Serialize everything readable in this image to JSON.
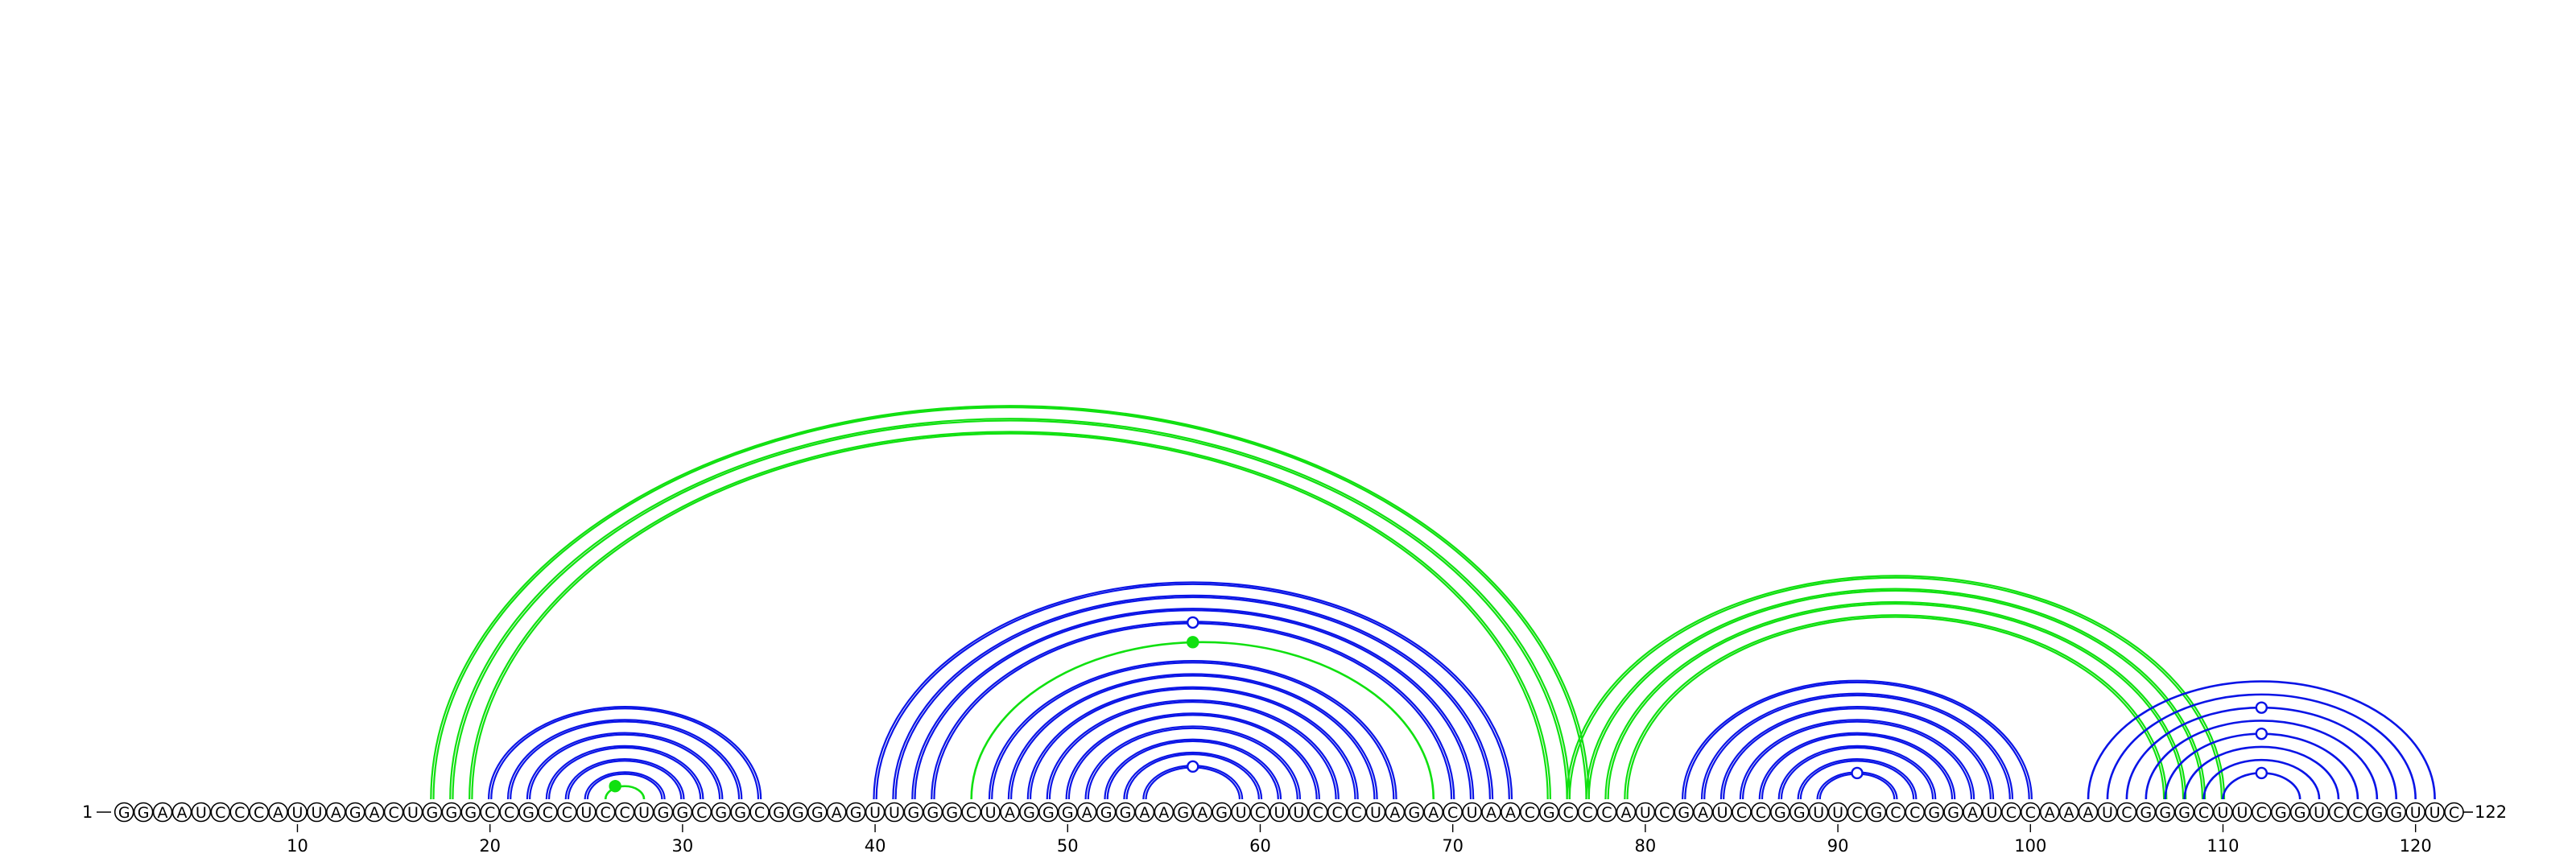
{
  "sequence": "GGAAUCCCAUUAGACUGGGCCGCCUCCUGGCGGCGGGAGUUGGGCUAGGGAGGAAGAGUCUUCCCUAGACUAACGCCCAUCGAUCCGGUUCGCCGGAUCCAAAUCGGGCUUCGGUCCGGUUC",
  "start_label": "1",
  "end_label": "122",
  "ticks": [
    10,
    20,
    30,
    40,
    50,
    60,
    70,
    80,
    90,
    100,
    110,
    120
  ],
  "colors": {
    "blue": "#0a14e6",
    "green": "#10e010",
    "text": "#000000"
  },
  "helices": [
    {
      "color": "green",
      "style": "double",
      "pairs": [
        [
          17,
          77
        ],
        [
          18,
          76
        ],
        [
          19,
          75
        ]
      ]
    },
    {
      "color": "blue",
      "style": "double",
      "pairs": [
        [
          20,
          34
        ],
        [
          21,
          33
        ],
        [
          22,
          32
        ],
        [
          23,
          31
        ],
        [
          24,
          30
        ],
        [
          25,
          29
        ]
      ]
    },
    {
      "color": "green",
      "style": "single",
      "pairs": [
        [
          26,
          28
        ]
      ]
    },
    {
      "color": "blue",
      "style": "double",
      "pairs": [
        [
          40,
          73
        ],
        [
          41,
          72
        ],
        [
          42,
          71
        ],
        [
          43,
          70
        ]
      ]
    },
    {
      "color": "green",
      "style": "single",
      "pairs": [
        [
          45,
          69
        ]
      ]
    },
    {
      "color": "blue",
      "style": "double",
      "pairs": [
        [
          46,
          67
        ],
        [
          47,
          66
        ],
        [
          48,
          65
        ],
        [
          49,
          64
        ],
        [
          50,
          63
        ],
        [
          51,
          62
        ],
        [
          52,
          61
        ],
        [
          53,
          60
        ],
        [
          54,
          59
        ]
      ]
    },
    {
      "color": "green",
      "style": "double",
      "pairs": [
        [
          76,
          110
        ],
        [
          77,
          109
        ],
        [
          78,
          108
        ],
        [
          79,
          107
        ]
      ]
    },
    {
      "color": "blue",
      "style": "double",
      "pairs": [
        [
          82,
          100
        ],
        [
          83,
          99
        ],
        [
          84,
          98
        ],
        [
          85,
          97
        ],
        [
          86,
          96
        ],
        [
          87,
          95
        ],
        [
          88,
          94
        ],
        [
          89,
          93
        ]
      ]
    },
    {
      "color": "blue",
      "style": "single",
      "pairs": [
        [
          103,
          121
        ],
        [
          104,
          120
        ],
        [
          105,
          119
        ],
        [
          106,
          118
        ],
        [
          107,
          117
        ],
        [
          108,
          116
        ],
        [
          109,
          115
        ],
        [
          110,
          114
        ]
      ]
    }
  ],
  "markers": [
    {
      "color": "green",
      "filled": true,
      "position": 26.5,
      "arc": [
        26,
        28
      ]
    },
    {
      "color": "blue",
      "filled": false,
      "position": 56.5,
      "arc": [
        54,
        59
      ]
    },
    {
      "color": "green",
      "filled": true,
      "position": 56.5,
      "arc": [
        45,
        69
      ]
    },
    {
      "color": "blue",
      "filled": false,
      "position": 56.5,
      "arc": [
        43,
        70
      ]
    },
    {
      "color": "blue",
      "filled": false,
      "position": 91.0,
      "arc": [
        89,
        93
      ]
    },
    {
      "color": "blue",
      "filled": false,
      "position": 112.0,
      "arc": [
        110,
        114
      ]
    },
    {
      "color": "blue",
      "filled": false,
      "position": 112.0,
      "arc": [
        107,
        117
      ]
    },
    {
      "color": "blue",
      "filled": false,
      "position": 112.0,
      "arc": [
        105,
        119
      ]
    }
  ]
}
